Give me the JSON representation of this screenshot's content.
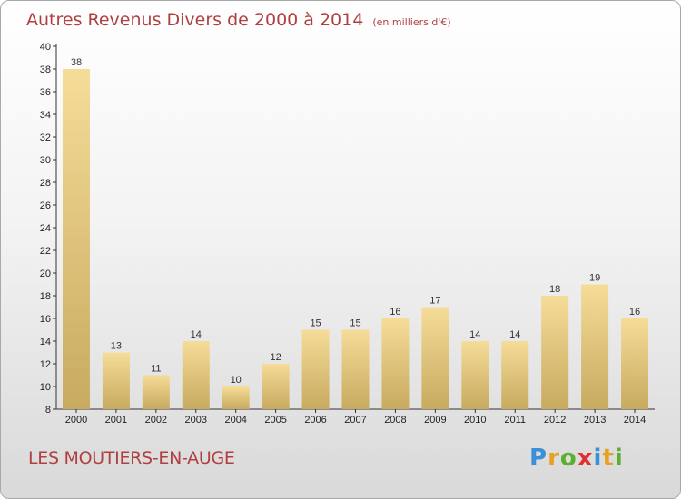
{
  "title": "Autres Revenus Divers de 2000 à 2014",
  "subtitle": "(en milliers d'€)",
  "place_name": "LES MOUTIERS-EN-AUGE",
  "logo": {
    "letters": [
      "P",
      "r",
      "o",
      "x",
      "i",
      "t",
      "i"
    ],
    "colors": [
      "#3a8fd6",
      "#e8a020",
      "#5cb030",
      "#e03030",
      "#3a8fd6",
      "#e8a020",
      "#5cb030"
    ]
  },
  "colors": {
    "bar_light": "#f5dc98",
    "bar_dark": "#c8aa60",
    "title": "#b04040"
  },
  "chart_data": {
    "type": "bar",
    "categories": [
      "2000",
      "2001",
      "2002",
      "2003",
      "2004",
      "2005",
      "2006",
      "2007",
      "2008",
      "2009",
      "2010",
      "2011",
      "2012",
      "2013",
      "2014"
    ],
    "values": [
      38,
      13,
      11,
      14,
      10,
      12,
      15,
      15,
      16,
      17,
      14,
      14,
      18,
      19,
      16
    ],
    "ylim": [
      8,
      40
    ],
    "yticks": [
      8,
      10,
      12,
      14,
      16,
      18,
      20,
      22,
      24,
      26,
      28,
      30,
      32,
      34,
      36,
      38,
      40
    ],
    "grid": false
  }
}
